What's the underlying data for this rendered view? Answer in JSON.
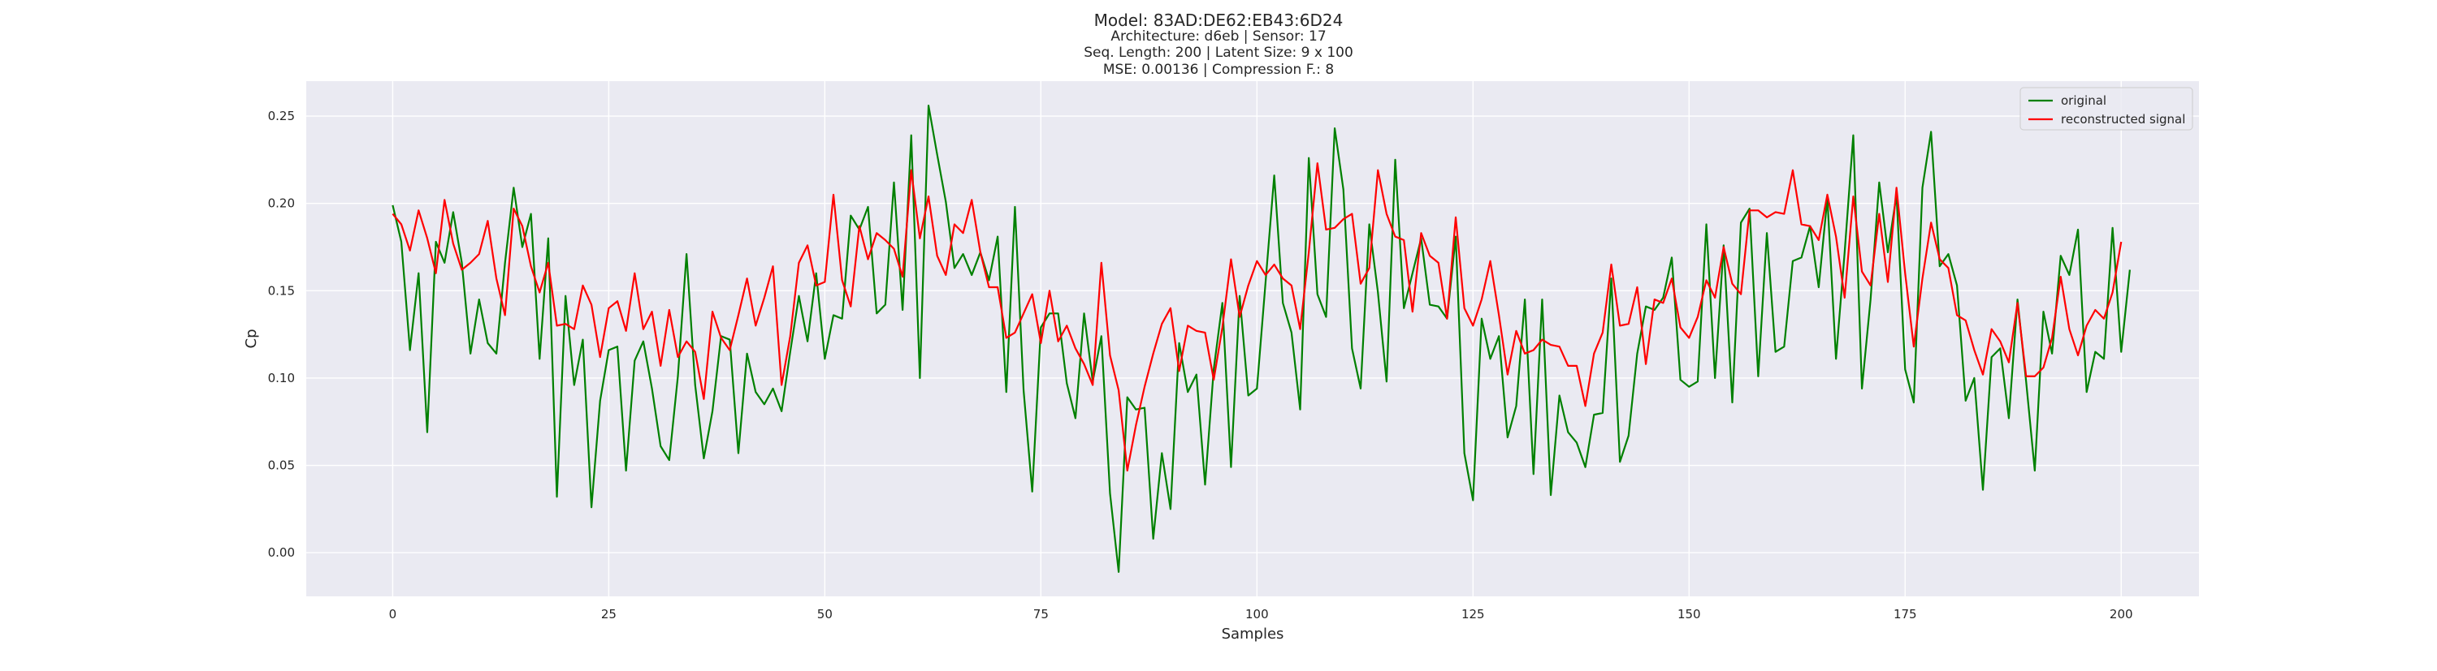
{
  "chart_data": {
    "type": "line",
    "title": "Model: 83AD:DE62:EB43:6D24",
    "subtitle_lines": [
      "Architecture: d6eb | Sensor: 17",
      "Seq. Length: 200 | Latent Size: 9 x 100",
      "MSE: 0.00136 | Compression F.: 8"
    ],
    "xlabel": "Samples",
    "ylabel": "Cp",
    "xlim": [
      -10,
      209
    ],
    "ylim": [
      -0.025,
      0.27
    ],
    "xticks": [
      0,
      25,
      50,
      75,
      100,
      125,
      150,
      175,
      200
    ],
    "yticks": [
      0.0,
      0.05,
      0.1,
      0.15,
      0.2,
      0.25
    ],
    "ytick_labels": [
      "0.00",
      "0.05",
      "0.10",
      "0.15",
      "0.20",
      "0.25"
    ],
    "grid": true,
    "legend_position": "top-right",
    "series": [
      {
        "name": "original",
        "color": "#008000",
        "values": [
          0.199,
          0.178,
          0.116,
          0.16,
          0.069,
          0.178,
          0.166,
          0.195,
          0.166,
          0.114,
          0.145,
          0.12,
          0.114,
          0.166,
          0.209,
          0.175,
          0.194,
          0.111,
          0.18,
          0.032,
          0.147,
          0.096,
          0.122,
          0.026,
          0.087,
          0.116,
          0.118,
          0.047,
          0.11,
          0.121,
          0.094,
          0.061,
          0.053,
          0.101,
          0.171,
          0.096,
          0.054,
          0.081,
          0.124,
          0.122,
          0.057,
          0.114,
          0.092,
          0.085,
          0.094,
          0.081,
          0.115,
          0.147,
          0.121,
          0.16,
          0.111,
          0.136,
          0.134,
          0.193,
          0.185,
          0.198,
          0.137,
          0.142,
          0.212,
          0.139,
          0.239,
          0.1,
          0.256,
          0.228,
          0.201,
          0.163,
          0.171,
          0.159,
          0.172,
          0.156,
          0.181,
          0.092,
          0.198,
          0.093,
          0.035,
          0.129,
          0.137,
          0.137,
          0.097,
          0.077,
          0.137,
          0.098,
          0.124,
          0.034,
          -0.011,
          0.089,
          0.082,
          0.083,
          0.008,
          0.057,
          0.025,
          0.12,
          0.092,
          0.102,
          0.039,
          0.105,
          0.143,
          0.049,
          0.147,
          0.09,
          0.094,
          0.155,
          0.216,
          0.143,
          0.126,
          0.082,
          0.226,
          0.148,
          0.135,
          0.243,
          0.208,
          0.117,
          0.094,
          0.188,
          0.149,
          0.098,
          0.225,
          0.14,
          0.16,
          0.18,
          0.142,
          0.141,
          0.134,
          0.181,
          0.057,
          0.03,
          0.134,
          0.111,
          0.124,
          0.066,
          0.084,
          0.145,
          0.045,
          0.145,
          0.033,
          0.09,
          0.069,
          0.063,
          0.049,
          0.079,
          0.08,
          0.157,
          0.052,
          0.067,
          0.114,
          0.141,
          0.139,
          0.146,
          0.169,
          0.099,
          0.095,
          0.098,
          0.188,
          0.1,
          0.176,
          0.086,
          0.189,
          0.197,
          0.101,
          0.183,
          0.115,
          0.118,
          0.167,
          0.169,
          0.187,
          0.152,
          0.203,
          0.111,
          0.172,
          0.239,
          0.094,
          0.145,
          0.212,
          0.172,
          0.205,
          0.105,
          0.086,
          0.209,
          0.241,
          0.164,
          0.171,
          0.153,
          0.087,
          0.1,
          0.036,
          0.112,
          0.117,
          0.077,
          0.145,
          0.098,
          0.047,
          0.138,
          0.114,
          0.17,
          0.159,
          0.185,
          0.092,
          0.115,
          0.111,
          0.186,
          0.115,
          0.162
        ]
      },
      {
        "name": "reconstructed signal",
        "color": "#ff0000",
        "values": [
          0.194,
          0.188,
          0.173,
          0.196,
          0.18,
          0.16,
          0.202,
          0.177,
          0.162,
          0.166,
          0.171,
          0.19,
          0.157,
          0.136,
          0.197,
          0.187,
          0.164,
          0.149,
          0.166,
          0.13,
          0.131,
          0.128,
          0.153,
          0.142,
          0.112,
          0.14,
          0.144,
          0.127,
          0.16,
          0.128,
          0.138,
          0.107,
          0.139,
          0.112,
          0.121,
          0.115,
          0.088,
          0.138,
          0.123,
          0.116,
          0.136,
          0.157,
          0.13,
          0.146,
          0.164,
          0.096,
          0.124,
          0.166,
          0.176,
          0.153,
          0.155,
          0.205,
          0.156,
          0.141,
          0.187,
          0.168,
          0.183,
          0.179,
          0.174,
          0.158,
          0.219,
          0.18,
          0.204,
          0.17,
          0.159,
          0.188,
          0.183,
          0.202,
          0.172,
          0.152,
          0.152,
          0.123,
          0.126,
          0.137,
          0.148,
          0.12,
          0.15,
          0.121,
          0.13,
          0.117,
          0.108,
          0.096,
          0.166,
          0.113,
          0.093,
          0.047,
          0.073,
          0.095,
          0.114,
          0.131,
          0.14,
          0.104,
          0.13,
          0.127,
          0.126,
          0.099,
          0.129,
          0.168,
          0.135,
          0.153,
          0.167,
          0.159,
          0.165,
          0.157,
          0.153,
          0.128,
          0.172,
          0.223,
          0.185,
          0.186,
          0.191,
          0.194,
          0.154,
          0.163,
          0.219,
          0.194,
          0.181,
          0.179,
          0.138,
          0.183,
          0.17,
          0.166,
          0.134,
          0.192,
          0.14,
          0.13,
          0.145,
          0.167,
          0.136,
          0.102,
          0.127,
          0.114,
          0.116,
          0.122,
          0.119,
          0.118,
          0.107,
          0.107,
          0.084,
          0.114,
          0.126,
          0.165,
          0.13,
          0.131,
          0.152,
          0.108,
          0.145,
          0.143,
          0.157,
          0.129,
          0.123,
          0.135,
          0.156,
          0.146,
          0.175,
          0.154,
          0.148,
          0.196,
          0.196,
          0.192,
          0.195,
          0.194,
          0.219,
          0.188,
          0.187,
          0.179,
          0.205,
          0.181,
          0.146,
          0.204,
          0.161,
          0.153,
          0.194,
          0.155,
          0.209,
          0.16,
          0.118,
          0.157,
          0.189,
          0.168,
          0.163,
          0.136,
          0.133,
          0.116,
          0.102,
          0.128,
          0.121,
          0.109,
          0.143,
          0.101,
          0.101,
          0.106,
          0.123,
          0.158,
          0.128,
          0.113,
          0.13,
          0.139,
          0.134,
          0.149,
          0.178
        ]
      }
    ]
  },
  "theme": {
    "plot_bg": "#eaeaf2",
    "grid_color": "#ffffff",
    "text_color": "#262626"
  }
}
